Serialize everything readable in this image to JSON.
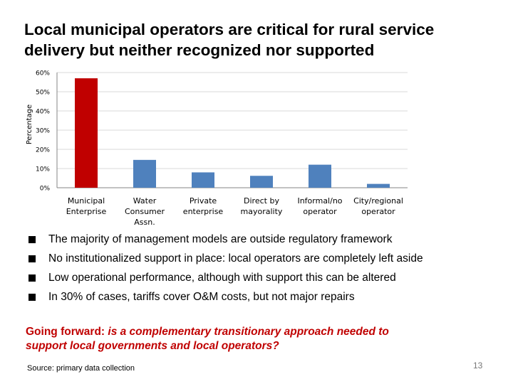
{
  "slide": {
    "title_lines": [
      "Local municipal operators are critical for rural service",
      "delivery but neither recognized nor supported"
    ],
    "bullets": [
      "The majority of management models are outside regulatory framework",
      "No institutionalized support in place: local operators are completely left aside",
      "Low operational performance, although with support this can be altered",
      "In 30% of cases, tariffs cover O&M costs, but not major repairs"
    ],
    "forward_lead": "Going forward:",
    "forward_question_lines": [
      "is a complementary transitionary approach needed to",
      "support local governments and local operators?"
    ],
    "source": "Source: primary data collection",
    "page_number": "13"
  },
  "chart_data": {
    "type": "bar",
    "categories": [
      [
        "Municipal",
        "Enterprise"
      ],
      [
        "Water",
        "Consumer",
        "Assn."
      ],
      [
        "Private",
        "enterprise"
      ],
      [
        "Direct by",
        "mayorality"
      ],
      [
        "Informal/no",
        "operator"
      ],
      [
        "City/regional",
        "operator"
      ]
    ],
    "values": [
      0.57,
      0.145,
      0.08,
      0.062,
      0.12,
      0.02
    ],
    "ylabel": "Percentage",
    "ylim": [
      0,
      0.6
    ],
    "yticks": [
      "0%",
      "10%",
      "20%",
      "30%",
      "40%",
      "50%",
      "60%"
    ],
    "grid": true,
    "colors": {
      "highlight": "#c00000",
      "default": "#4f81bd",
      "grid": "#d9d9d9",
      "axis": "#868686"
    },
    "highlight_index": 0
  }
}
